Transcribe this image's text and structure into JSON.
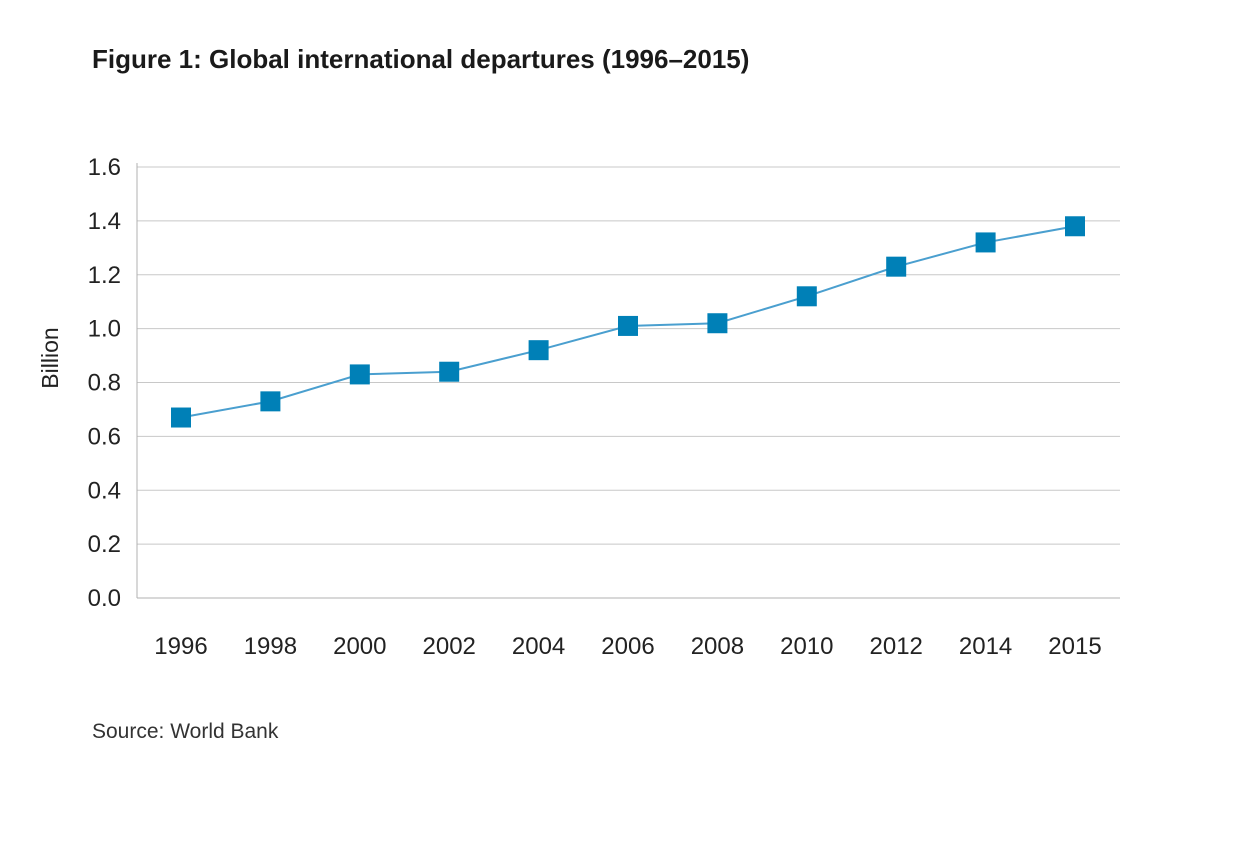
{
  "title": "Figure 1: Global international departures (1996–2015)",
  "source": "Source: World Bank",
  "colors": {
    "series": "#0080b7",
    "line": "#4a9fcf",
    "grid": "#c8c8c8",
    "axis": "#b0b0b0"
  },
  "chart_data": {
    "type": "line",
    "title": "Figure 1: Global international departures (1996–2015)",
    "xlabel": "",
    "ylabel": "Billion",
    "categories": [
      "1996",
      "1998",
      "2000",
      "2002",
      "2004",
      "2006",
      "2008",
      "2010",
      "2012",
      "2014",
      "2015"
    ],
    "series": [
      {
        "name": "",
        "values": [
          0.67,
          0.73,
          0.83,
          0.84,
          0.92,
          1.01,
          1.02,
          1.12,
          1.23,
          1.32,
          1.38
        ]
      }
    ],
    "ylim": [
      0,
      1.6
    ],
    "yticks": [
      "0.0",
      "0.2",
      "0.4",
      "0.6",
      "0.8",
      "1.0",
      "1.2",
      "1.4",
      "1.6"
    ],
    "grid": true,
    "marker": "square",
    "legend": "none"
  }
}
